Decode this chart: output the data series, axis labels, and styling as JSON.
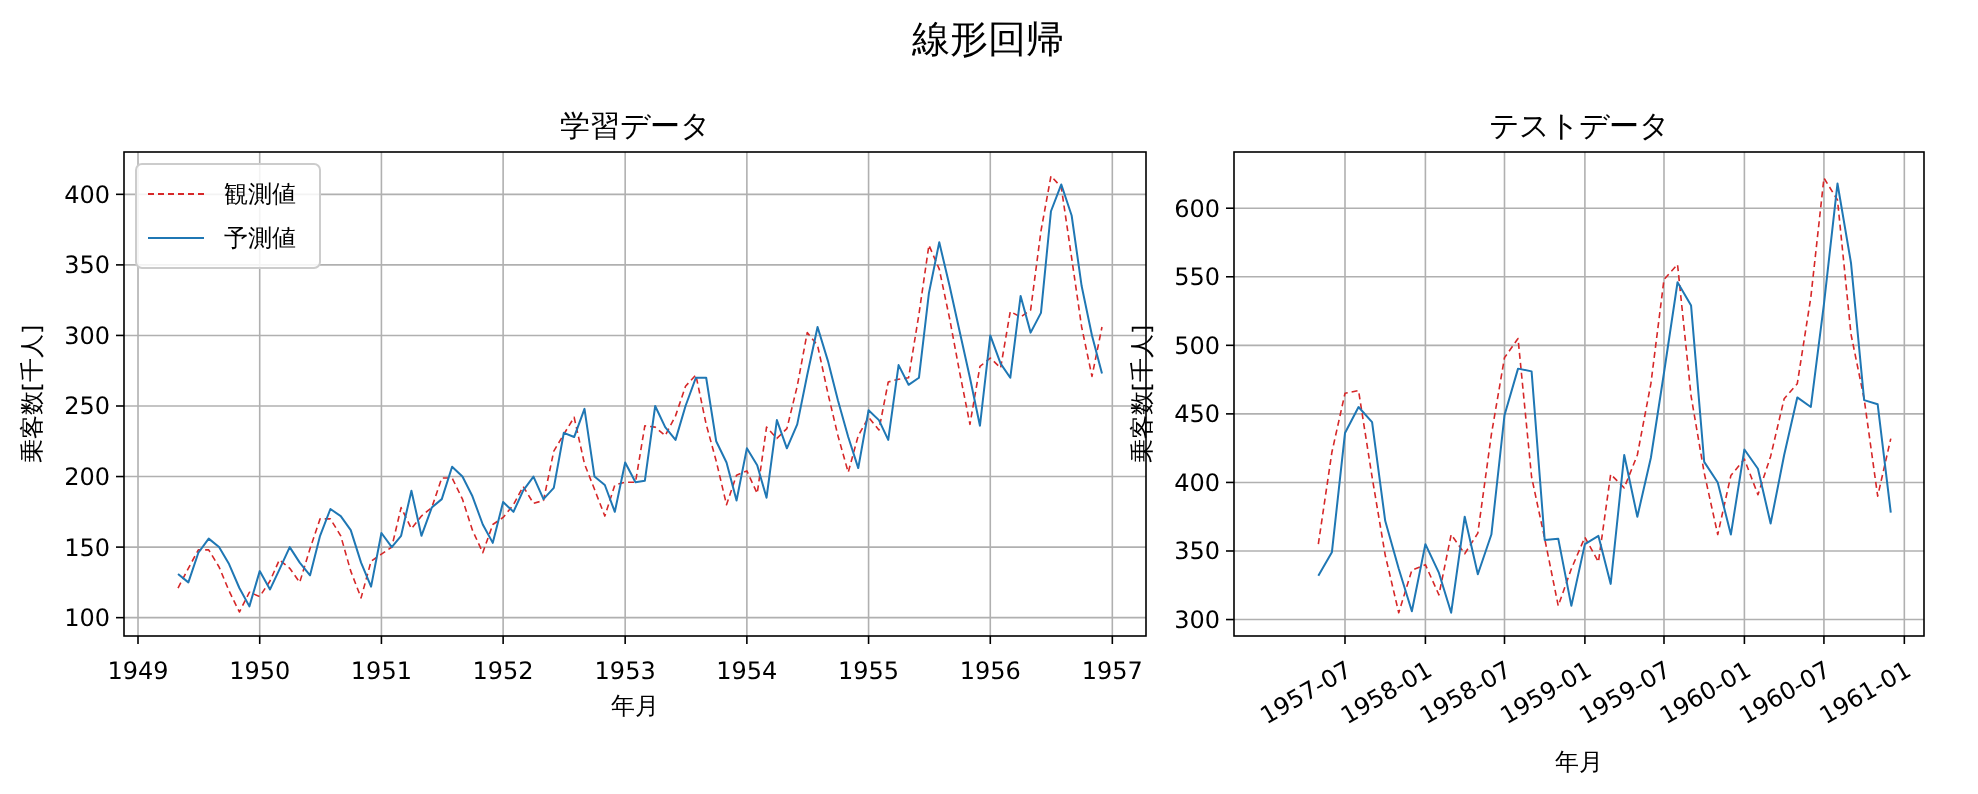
{
  "chart_data": [
    {
      "type": "line",
      "title": "学習データ",
      "xlabel": "年月",
      "ylabel": "乗客数[千人]",
      "annotations": [
        "線形回帰"
      ],
      "legend": "top left",
      "grid": true,
      "x": [
        "1949-05",
        "1949-06",
        "1949-07",
        "1949-08",
        "1949-09",
        "1949-10",
        "1949-11",
        "1949-12",
        "1950-01",
        "1950-02",
        "1950-03",
        "1950-04",
        "1950-05",
        "1950-06",
        "1950-07",
        "1950-08",
        "1950-09",
        "1950-10",
        "1950-11",
        "1950-12",
        "1951-01",
        "1951-02",
        "1951-03",
        "1951-04",
        "1951-05",
        "1951-06",
        "1951-07",
        "1951-08",
        "1951-09",
        "1951-10",
        "1951-11",
        "1951-12",
        "1952-01",
        "1952-02",
        "1952-03",
        "1952-04",
        "1952-05",
        "1952-06",
        "1952-07",
        "1952-08",
        "1952-09",
        "1952-10",
        "1952-11",
        "1952-12",
        "1953-01",
        "1953-02",
        "1953-03",
        "1953-04",
        "1953-05",
        "1953-06",
        "1953-07",
        "1953-08",
        "1953-09",
        "1953-10",
        "1953-11",
        "1953-12",
        "1954-01",
        "1954-02",
        "1954-03",
        "1954-04",
        "1954-05",
        "1954-06",
        "1954-07",
        "1954-08",
        "1954-09",
        "1954-10",
        "1954-11",
        "1954-12",
        "1955-01",
        "1955-02",
        "1955-03",
        "1955-04",
        "1955-05",
        "1955-06",
        "1955-07",
        "1955-08",
        "1955-09",
        "1955-10",
        "1955-11",
        "1955-12",
        "1956-01",
        "1956-02",
        "1956-03",
        "1956-04",
        "1956-05",
        "1956-06",
        "1956-07",
        "1956-08",
        "1956-09",
        "1956-10",
        "1956-11",
        "1956-12"
      ],
      "series": [
        {
          "name": "観測値",
          "color": "#d62728",
          "line_style": "dashed",
          "values": [
            121,
            135,
            148,
            148,
            136,
            119,
            104,
            118,
            115,
            126,
            141,
            135,
            125,
            149,
            170,
            170,
            158,
            133,
            114,
            140,
            145,
            150,
            178,
            163,
            172,
            178,
            199,
            199,
            184,
            162,
            146,
            166,
            171,
            180,
            193,
            181,
            183,
            218,
            230,
            242,
            209,
            191,
            172,
            194,
            196,
            196,
            236,
            235,
            229,
            243,
            264,
            272,
            237,
            211,
            180,
            201,
            204,
            188,
            235,
            227,
            234,
            264,
            302,
            293,
            259,
            229,
            203,
            229,
            242,
            233,
            267,
            269,
            270,
            315,
            364,
            347,
            312,
            274,
            237,
            278,
            284,
            277,
            317,
            313,
            318,
            374,
            413,
            405,
            355,
            306,
            271,
            306
          ]
        },
        {
          "name": "予測値",
          "color": "#1f77b4",
          "line_style": "solid",
          "values": [
            131,
            125,
            146,
            156,
            150,
            138,
            121,
            108,
            133,
            120,
            134,
            150,
            139,
            130,
            158,
            177,
            172,
            162,
            139,
            122,
            160,
            150,
            158,
            190,
            158,
            178,
            184,
            207,
            200,
            186,
            166,
            153,
            182,
            175,
            190,
            200,
            184,
            192,
            231,
            228,
            248,
            200,
            194,
            175,
            210,
            196,
            197,
            250,
            235,
            226,
            250,
            270,
            270,
            225,
            210,
            183,
            220,
            208,
            185,
            240,
            220,
            237,
            272,
            306,
            282,
            254,
            228,
            206,
            247,
            240,
            226,
            279,
            265,
            270,
            330,
            366,
            335,
            303,
            270,
            236,
            300,
            280,
            270,
            328,
            302,
            316,
            388,
            407,
            385,
            335,
            300,
            273
          ]
        }
      ],
      "xlim": [
        "1948-11-20",
        "1957-04-12"
      ],
      "xticks": [
        {
          "value": "1949-01",
          "label": "1949"
        },
        {
          "value": "1950-01",
          "label": "1950"
        },
        {
          "value": "1951-01",
          "label": "1951"
        },
        {
          "value": "1952-01",
          "label": "1952"
        },
        {
          "value": "1953-01",
          "label": "1953"
        },
        {
          "value": "1954-01",
          "label": "1954"
        },
        {
          "value": "1955-01",
          "label": "1955"
        },
        {
          "value": "1956-01",
          "label": "1956"
        },
        {
          "value": "1957-01",
          "label": "1957"
        }
      ],
      "ylim": [
        87,
        430
      ],
      "yticks": [
        100,
        150,
        200,
        250,
        300,
        350,
        400
      ]
    },
    {
      "type": "line",
      "title": "テストデータ",
      "xlabel": "年月",
      "ylabel": "乗客数[千人]",
      "grid": true,
      "x": [
        "1957-05",
        "1957-06",
        "1957-07",
        "1957-08",
        "1957-09",
        "1957-10",
        "1957-11",
        "1957-12",
        "1958-01",
        "1958-02",
        "1958-03",
        "1958-04",
        "1958-05",
        "1958-06",
        "1958-07",
        "1958-08",
        "1958-09",
        "1958-10",
        "1958-11",
        "1958-12",
        "1959-01",
        "1959-02",
        "1959-03",
        "1959-04",
        "1959-05",
        "1959-06",
        "1959-07",
        "1959-08",
        "1959-09",
        "1959-10",
        "1959-11",
        "1959-12",
        "1960-01",
        "1960-02",
        "1960-03",
        "1960-04",
        "1960-05",
        "1960-06",
        "1960-07",
        "1960-08",
        "1960-09",
        "1960-10",
        "1960-11",
        "1960-12"
      ],
      "series": [
        {
          "color": "#d62728",
          "line_style": "dashed",
          "values": [
            355,
            422,
            465,
            467,
            404,
            347,
            305,
            336,
            340,
            318,
            362,
            348,
            363,
            435,
            491,
            505,
            404,
            359,
            310,
            337,
            360,
            342,
            406,
            396,
            420,
            472,
            548,
            559,
            463,
            407,
            362,
            405,
            417,
            391,
            419,
            461,
            472,
            535,
            622,
            606,
            508,
            461,
            390,
            432
          ]
        },
        {
          "color": "#1f77b4",
          "line_style": "solid",
          "values": [
            332,
            349,
            436,
            455,
            444,
            372,
            337,
            306,
            355,
            334,
            305,
            375,
            333,
            362,
            449,
            483,
            481,
            358,
            359,
            310,
            355,
            361,
            326,
            420,
            375,
            418,
            480,
            546,
            529,
            415,
            400,
            362,
            424,
            410,
            370,
            420,
            462,
            455,
            530,
            618,
            560,
            460,
            457,
            378
          ]
        }
      ],
      "xlim": [
        "1956-10-20",
        "1961-02-15"
      ],
      "xticks": [
        "1957-07",
        "1958-01",
        "1958-07",
        "1959-01",
        "1959-07",
        "1960-01",
        "1960-07",
        "1961-01"
      ],
      "ylim": [
        288,
        641
      ],
      "yticks": [
        300,
        350,
        400,
        450,
        500,
        550,
        600
      ]
    }
  ]
}
